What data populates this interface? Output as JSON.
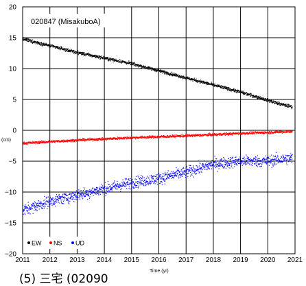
{
  "caption": "(5) 三宅 (02090",
  "chart_data": {
    "type": "scatter",
    "title": "020847 (MisakuboA)",
    "xlabel": "Time (yr)",
    "ylabel": "(cm)",
    "xlim": [
      2011,
      2021
    ],
    "ylim": [
      -20,
      20
    ],
    "x_ticks": [
      "2011",
      "2012",
      "2013",
      "2014",
      "2015",
      "2016",
      "2017",
      "2018",
      "2019",
      "2020",
      "2021"
    ],
    "y_ticks": [
      "20",
      "15",
      "10",
      "5",
      "0",
      "−5",
      "−10",
      "−15",
      "−20"
    ],
    "grid": true,
    "legend_position": "bottom-left",
    "series": [
      {
        "name": "EW",
        "color": "#000000",
        "trend_points": [
          [
            2011.0,
            14.8
          ],
          [
            2013.0,
            12.6
          ],
          [
            2015.0,
            10.8
          ],
          [
            2017.0,
            8.5
          ],
          [
            2019.0,
            6.2
          ],
          [
            2020.5,
            4.2
          ],
          [
            2020.9,
            3.8
          ]
        ],
        "noise_cm": 0.25
      },
      {
        "name": "NS",
        "color": "#ff0000",
        "trend_points": [
          [
            2011.0,
            -2.1
          ],
          [
            2013.0,
            -1.6
          ],
          [
            2015.0,
            -1.2
          ],
          [
            2017.0,
            -0.9
          ],
          [
            2019.0,
            -0.5
          ],
          [
            2020.9,
            -0.2
          ]
        ],
        "noise_cm": 0.2
      },
      {
        "name": "UD",
        "color": "#0000ff",
        "trend_points": [
          [
            2011.0,
            -13.0
          ],
          [
            2012.0,
            -11.5
          ],
          [
            2013.0,
            -10.5
          ],
          [
            2014.0,
            -9.5
          ],
          [
            2015.0,
            -8.5
          ],
          [
            2016.0,
            -7.8
          ],
          [
            2017.0,
            -6.8
          ],
          [
            2018.0,
            -5.5
          ],
          [
            2019.0,
            -5.0
          ],
          [
            2020.0,
            -5.0
          ],
          [
            2020.9,
            -4.5
          ]
        ],
        "noise_cm": 0.9
      }
    ]
  }
}
